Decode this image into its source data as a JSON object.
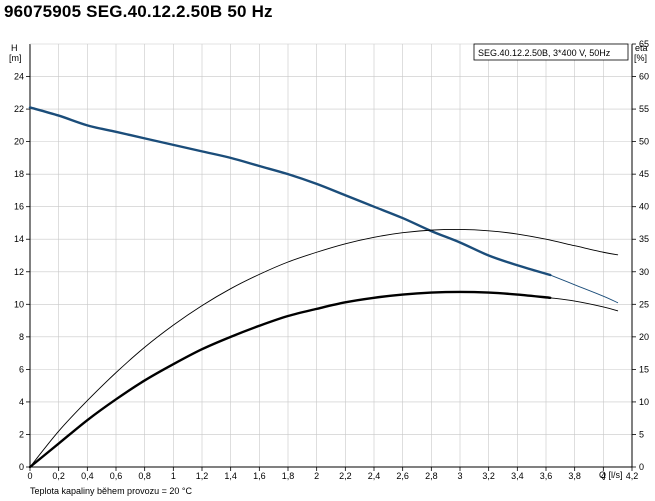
{
  "title": "96075905 SEG.40.12.2.50B  50 Hz",
  "footer_note": "Teplota kapaliny během provozu = 20 °C",
  "colors": {
    "head_curve": "#1b4d7a",
    "curves": "#000000",
    "grid": "#c8c8c8",
    "axes": "#000000"
  },
  "chart_data": {
    "type": "line",
    "legend_text": "SEG.40.12.2.50B, 3*400 V, 50Hz",
    "legend_position": "top-right",
    "grid": true,
    "x_axis": {
      "label": "Q [l/s]",
      "range": [
        0,
        4.2
      ],
      "ticks": [
        "0",
        "0,2",
        "0,4",
        "0,6",
        "0,8",
        "1",
        "1,2",
        "1,4",
        "1,6",
        "1,8",
        "2",
        "2,2",
        "2,4",
        "2,6",
        "2,8",
        "3",
        "3,2",
        "3,4",
        "3,6",
        "3,8",
        "4",
        "4,2"
      ]
    },
    "y_left_axis": {
      "label_line1": "H",
      "label_line2": "[m]",
      "range": [
        0,
        26
      ],
      "ticks": [
        "0",
        "2",
        "4",
        "6",
        "8",
        "10",
        "12",
        "14",
        "16",
        "18",
        "20",
        "22",
        "24"
      ]
    },
    "y_right_axis": {
      "label_line1": "eta",
      "label_line2": "[%]",
      "range": [
        0,
        65
      ],
      "ticks": [
        "0",
        "5",
        "10",
        "15",
        "20",
        "25",
        "30",
        "35",
        "40",
        "45",
        "50",
        "55",
        "60",
        "65"
      ]
    },
    "series": [
      {
        "axis": "left",
        "style": "bold-blue",
        "x": [
          0,
          0.2,
          0.4,
          0.6,
          0.8,
          1.0,
          1.2,
          1.4,
          1.6,
          1.8,
          2.0,
          2.2,
          2.4,
          2.6,
          2.8,
          3.0,
          3.2,
          3.4,
          3.63
        ],
        "y": [
          22.1,
          21.6,
          21.0,
          20.6,
          20.2,
          19.8,
          19.4,
          19.0,
          18.5,
          18.0,
          17.4,
          16.7,
          16.0,
          15.3,
          14.5,
          13.8,
          13.0,
          12.4,
          11.8
        ]
      },
      {
        "axis": "left",
        "style": "thin-blue",
        "x": [
          3.63,
          3.8,
          4.0,
          4.1
        ],
        "y": [
          11.8,
          11.2,
          10.5,
          10.1
        ]
      },
      {
        "axis": "right",
        "style": "thin-black",
        "x": [
          0,
          0.2,
          0.4,
          0.6,
          0.8,
          1.0,
          1.2,
          1.4,
          1.6,
          1.8,
          2.0,
          2.2,
          2.4,
          2.6,
          2.8,
          3.0,
          3.2,
          3.4,
          3.6,
          3.8,
          4.0,
          4.1
        ],
        "y": [
          0,
          5.5,
          10.2,
          14.5,
          18.4,
          21.8,
          24.8,
          27.4,
          29.6,
          31.5,
          33.0,
          34.3,
          35.3,
          36.0,
          36.4,
          36.5,
          36.3,
          35.8,
          35.0,
          34.0,
          33.0,
          32.6
        ]
      },
      {
        "axis": "right",
        "style": "bold-black",
        "x": [
          0,
          0.2,
          0.4,
          0.6,
          0.8,
          1.0,
          1.2,
          1.4,
          1.6,
          1.8,
          2.0,
          2.2,
          2.4,
          2.6,
          2.8,
          3.0,
          3.2,
          3.4,
          3.63
        ],
        "y": [
          0,
          3.6,
          7.2,
          10.4,
          13.3,
          15.8,
          18.1,
          20.0,
          21.7,
          23.2,
          24.3,
          25.3,
          26.0,
          26.5,
          26.8,
          26.9,
          26.8,
          26.5,
          26.0
        ]
      },
      {
        "axis": "right",
        "style": "thin-black",
        "x": [
          3.63,
          3.8,
          4.0,
          4.1
        ],
        "y": [
          26.0,
          25.5,
          24.6,
          24.0
        ]
      }
    ]
  }
}
